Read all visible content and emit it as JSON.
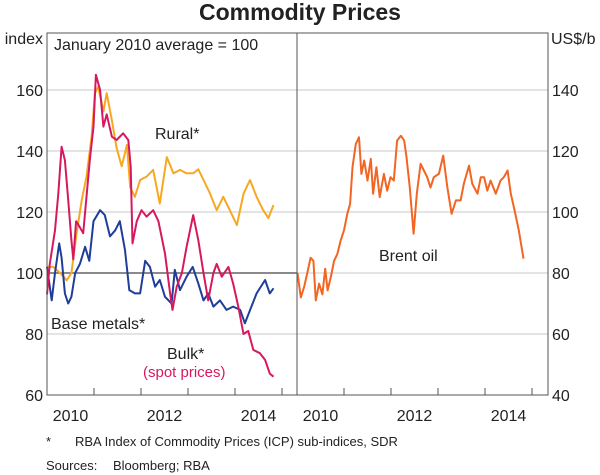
{
  "chart_data": [
    {
      "type": "line",
      "title": "Commodity Prices",
      "ylabel": "index",
      "annotation": "January 2010 average = 100",
      "ylim": [
        60,
        170
      ],
      "yticks": [
        60,
        80,
        100,
        120,
        140,
        160
      ],
      "xlim": [
        2010,
        2015.3
      ],
      "xticks": [
        "2010",
        "2012",
        "2014"
      ],
      "series": [
        {
          "name": "Rural*",
          "color": "#f7a823",
          "points": [
            [
              2010.0,
              102
            ],
            [
              2010.13,
              102
            ],
            [
              2010.28,
              100
            ],
            [
              2010.42,
              97.6
            ],
            [
              2010.52,
              100
            ],
            [
              2010.63,
              113
            ],
            [
              2010.74,
              124
            ],
            [
              2010.84,
              131.6
            ],
            [
              2010.95,
              145
            ],
            [
              2011.02,
              159
            ],
            [
              2011.09,
              161
            ],
            [
              2011.2,
              153
            ],
            [
              2011.27,
              159
            ],
            [
              2011.38,
              150
            ],
            [
              2011.48,
              141
            ],
            [
              2011.59,
              135
            ],
            [
              2011.7,
              142
            ],
            [
              2011.77,
              128
            ],
            [
              2011.87,
              125
            ],
            [
              2011.98,
              130.5
            ],
            [
              2012.12,
              131.6
            ],
            [
              2012.26,
              133.8
            ],
            [
              2012.4,
              122.8
            ],
            [
              2012.55,
              138
            ],
            [
              2012.69,
              132.7
            ],
            [
              2012.83,
              133.8
            ],
            [
              2012.97,
              132.7
            ],
            [
              2013.11,
              132.7
            ],
            [
              2013.22,
              134
            ],
            [
              2013.33,
              130.5
            ],
            [
              2013.47,
              126
            ],
            [
              2013.61,
              120.6
            ],
            [
              2013.75,
              125
            ],
            [
              2013.89,
              120.6
            ],
            [
              2014.04,
              115.7
            ],
            [
              2014.18,
              126
            ],
            [
              2014.32,
              130.5
            ],
            [
              2014.46,
              125
            ],
            [
              2014.6,
              120.6
            ],
            [
              2014.71,
              118
            ],
            [
              2014.82,
              122.3
            ]
          ]
        },
        {
          "name": "Base metals*",
          "color": "#1f3d99",
          "points": [
            [
              2010.0,
              102
            ],
            [
              2010.1,
              91
            ],
            [
              2010.17,
              100
            ],
            [
              2010.26,
              109.7
            ],
            [
              2010.31,
              105
            ],
            [
              2010.38,
              93.3
            ],
            [
              2010.45,
              90
            ],
            [
              2010.52,
              92.2
            ],
            [
              2010.6,
              100
            ],
            [
              2010.7,
              103
            ],
            [
              2010.81,
              108.6
            ],
            [
              2010.9,
              104
            ],
            [
              2010.99,
              117
            ],
            [
              2011.13,
              120.6
            ],
            [
              2011.23,
              119
            ],
            [
              2011.34,
              112
            ],
            [
              2011.45,
              114
            ],
            [
              2011.55,
              117
            ],
            [
              2011.66,
              107.5
            ],
            [
              2011.75,
              94.4
            ],
            [
              2011.87,
              93.3
            ],
            [
              2011.98,
              93.3
            ],
            [
              2012.09,
              104
            ],
            [
              2012.19,
              102
            ],
            [
              2012.3,
              95.5
            ],
            [
              2012.4,
              97.7
            ],
            [
              2012.51,
              92.2
            ],
            [
              2012.65,
              90
            ],
            [
              2012.72,
              101
            ],
            [
              2012.83,
              94.4
            ],
            [
              2012.97,
              98.8
            ],
            [
              2013.1,
              102
            ],
            [
              2013.22,
              96.6
            ],
            [
              2013.33,
              91
            ],
            [
              2013.43,
              93.3
            ],
            [
              2013.54,
              89
            ],
            [
              2013.68,
              91
            ],
            [
              2013.82,
              87.9
            ],
            [
              2013.96,
              89
            ],
            [
              2014.11,
              87.9
            ],
            [
              2014.21,
              83.5
            ],
            [
              2014.35,
              89
            ],
            [
              2014.46,
              93.3
            ],
            [
              2014.64,
              97.7
            ],
            [
              2014.74,
              93.3
            ],
            [
              2014.82,
              95
            ]
          ]
        },
        {
          "name": "Bulk*",
          "sublabel": "(spot prices)",
          "color": "#d6195f",
          "points": [
            [
              2010.0,
              93
            ],
            [
              2010.06,
              103
            ],
            [
              2010.17,
              114
            ],
            [
              2010.24,
              126
            ],
            [
              2010.31,
              141.4
            ],
            [
              2010.38,
              137
            ],
            [
              2010.45,
              124
            ],
            [
              2010.52,
              110.8
            ],
            [
              2010.56,
              104.5
            ],
            [
              2010.62,
              117
            ],
            [
              2010.7,
              115
            ],
            [
              2010.77,
              113
            ],
            [
              2010.84,
              125
            ],
            [
              2010.91,
              137
            ],
            [
              2010.99,
              148
            ],
            [
              2011.04,
              165
            ],
            [
              2011.13,
              160
            ],
            [
              2011.2,
              148
            ],
            [
              2011.27,
              152
            ],
            [
              2011.38,
              144.7
            ],
            [
              2011.48,
              143.6
            ],
            [
              2011.62,
              145.8
            ],
            [
              2011.73,
              143.6
            ],
            [
              2011.78,
              134.9
            ],
            [
              2011.82,
              109.7
            ],
            [
              2011.91,
              117
            ],
            [
              2012.01,
              120.6
            ],
            [
              2012.12,
              118.5
            ],
            [
              2012.26,
              120.6
            ],
            [
              2012.37,
              117
            ],
            [
              2012.51,
              106.4
            ],
            [
              2012.62,
              93.3
            ],
            [
              2012.67,
              87.9
            ],
            [
              2012.76,
              95.5
            ],
            [
              2012.87,
              100
            ],
            [
              2012.97,
              108.6
            ],
            [
              2013.11,
              119
            ],
            [
              2013.22,
              110.8
            ],
            [
              2013.33,
              100
            ],
            [
              2013.43,
              91
            ],
            [
              2013.54,
              100
            ],
            [
              2013.61,
              103
            ],
            [
              2013.72,
              98.8
            ],
            [
              2013.86,
              102
            ],
            [
              2013.96,
              96.6
            ],
            [
              2014.07,
              89
            ],
            [
              2014.18,
              80
            ],
            [
              2014.28,
              81
            ],
            [
              2014.39,
              74.8
            ],
            [
              2014.53,
              73.7
            ],
            [
              2014.64,
              71.5
            ],
            [
              2014.74,
              67
            ],
            [
              2014.82,
              66
            ]
          ]
        }
      ]
    },
    {
      "type": "line",
      "ylabel": "US$/b",
      "ylim": [
        40,
        150
      ],
      "yticks": [
        40,
        60,
        80,
        100,
        120,
        140
      ],
      "xlim": [
        2010,
        2015.3
      ],
      "xticks": [
        "2010",
        "2012",
        "2014"
      ],
      "series": [
        {
          "name": "Brent oil",
          "color": "#f26522",
          "points": [
            [
              2010.01,
              80
            ],
            [
              2010.08,
              72
            ],
            [
              2010.15,
              75.4
            ],
            [
              2010.22,
              80
            ],
            [
              2010.29,
              85
            ],
            [
              2010.35,
              84
            ],
            [
              2010.4,
              71
            ],
            [
              2010.47,
              76.5
            ],
            [
              2010.54,
              73
            ],
            [
              2010.6,
              81.4
            ],
            [
              2010.65,
              74.3
            ],
            [
              2010.72,
              78.7
            ],
            [
              2010.79,
              84
            ],
            [
              2010.86,
              86.3
            ],
            [
              2010.93,
              90.7
            ],
            [
              2011.0,
              94
            ],
            [
              2011.07,
              99.4
            ],
            [
              2011.13,
              102.7
            ],
            [
              2011.18,
              114.7
            ],
            [
              2011.25,
              122.3
            ],
            [
              2011.32,
              124.5
            ],
            [
              2011.37,
              112.5
            ],
            [
              2011.43,
              116.9
            ],
            [
              2011.5,
              110.3
            ],
            [
              2011.57,
              117.4
            ],
            [
              2011.62,
              106
            ],
            [
              2011.69,
              114.7
            ],
            [
              2011.76,
              104.9
            ],
            [
              2011.85,
              112.5
            ],
            [
              2011.92,
              107
            ],
            [
              2011.99,
              111.4
            ],
            [
              2012.06,
              110.3
            ],
            [
              2012.13,
              123.4
            ],
            [
              2012.21,
              125
            ],
            [
              2012.28,
              123.4
            ],
            [
              2012.33,
              118
            ],
            [
              2012.4,
              108
            ],
            [
              2012.48,
              92.9
            ],
            [
              2012.55,
              106
            ],
            [
              2012.63,
              115.8
            ],
            [
              2012.7,
              113.6
            ],
            [
              2012.77,
              111.4
            ],
            [
              2012.84,
              108
            ],
            [
              2012.91,
              111.4
            ],
            [
              2013.02,
              112.5
            ],
            [
              2013.11,
              118.5
            ],
            [
              2013.2,
              108
            ],
            [
              2013.29,
              99.4
            ],
            [
              2013.38,
              103.8
            ],
            [
              2013.48,
              103.8
            ],
            [
              2013.55,
              109.2
            ],
            [
              2013.66,
              115.2
            ],
            [
              2013.73,
              109.2
            ],
            [
              2013.84,
              106
            ],
            [
              2013.91,
              111.4
            ],
            [
              2013.98,
              111.4
            ],
            [
              2014.05,
              107
            ],
            [
              2014.12,
              110.3
            ],
            [
              2014.23,
              106
            ],
            [
              2014.33,
              110.3
            ],
            [
              2014.4,
              111.4
            ],
            [
              2014.48,
              113.6
            ],
            [
              2014.55,
              106
            ],
            [
              2014.63,
              100.5
            ],
            [
              2014.72,
              94
            ],
            [
              2014.82,
              84.7
            ]
          ]
        }
      ]
    }
  ],
  "footnotes": {
    "star_mark": "*",
    "star_text": "RBA Index of Commodity Prices (ICP) sub-indices, SDR",
    "sources_label": "Sources:",
    "sources_text": "Bloomberg; RBA"
  }
}
